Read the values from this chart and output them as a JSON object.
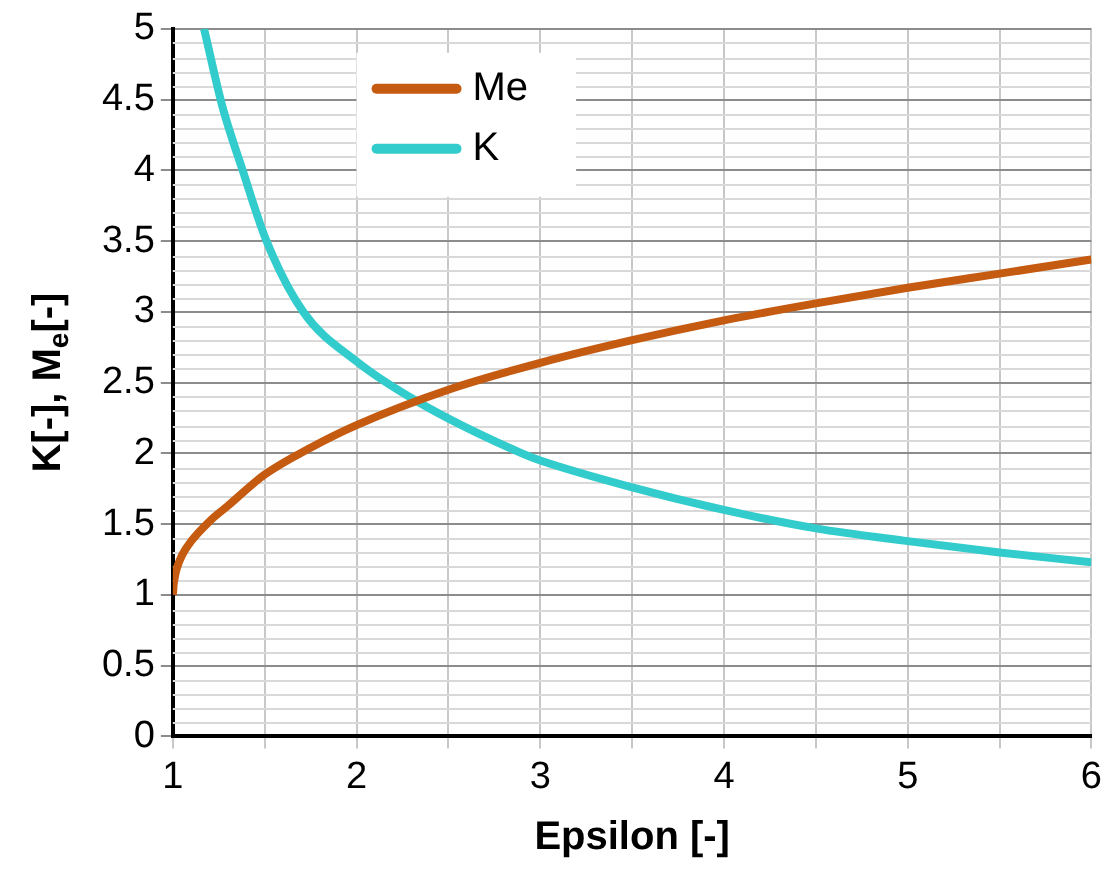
{
  "chart_data": {
    "type": "line",
    "xlabel": "Epsilon [-]",
    "ylabel": "K[-], M$_{e}$[-]",
    "xlim": [
      1,
      6
    ],
    "xticks": [
      1,
      {
        "value": 1.5,
        "label": null
      },
      2,
      {
        "value": 2.5,
        "label": null
      },
      3,
      {
        "value": 3.5,
        "label": null
      },
      4,
      {
        "value": 4.5,
        "label": null
      },
      5,
      {
        "value": 5.5,
        "label": null
      },
      6
    ],
    "ylim": [
      0,
      5
    ],
    "yticks": [
      0,
      0.5,
      1,
      1.5,
      2,
      2.5,
      3,
      3.5,
      4,
      4.5,
      5
    ],
    "grid": true,
    "legend": "top",
    "marker": "none",
    "line_style": "solid",
    "series": [
      {
        "name": "Me",
        "color": "#c55a11",
        "x": [
          1,
          1.005,
          1.01,
          1.02,
          1.05,
          1.1,
          1.2,
          1.3,
          1.5,
          1.75,
          2,
          2.5,
          3,
          3.5,
          4,
          4.5,
          5,
          5.5,
          6
        ],
        "values": [
          1,
          1.08,
          1.12,
          1.18,
          1.28,
          1.38,
          1.52,
          1.63,
          1.85,
          2.04,
          2.2,
          2.45,
          2.64,
          2.8,
          2.94,
          3.06,
          3.17,
          3.27,
          3.37
        ]
      },
      {
        "name": "K",
        "color": "#33cccc",
        "x": [
          1.17,
          1.27,
          1.38,
          1.51,
          1.71,
          2,
          2.34,
          2.9,
          3,
          3.5,
          4,
          4.5,
          5,
          5.5,
          6
        ],
        "values": [
          5,
          4.45,
          4,
          3.5,
          3,
          2.65,
          2.36,
          2,
          1.95,
          1.76,
          1.6,
          1.47,
          1.38,
          1.3,
          1.23
        ]
      }
    ]
  }
}
